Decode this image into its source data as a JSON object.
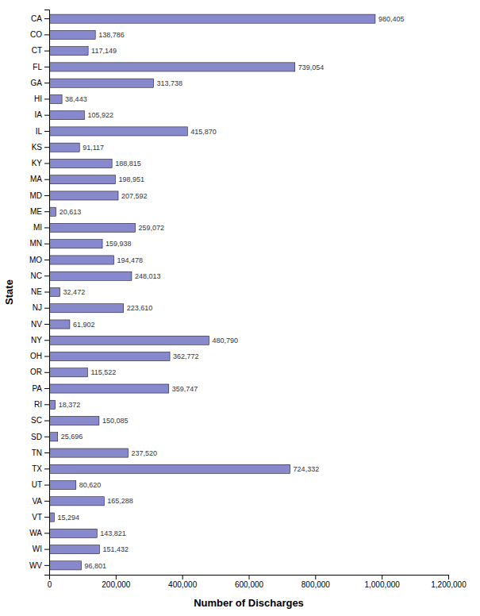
{
  "chart_data": {
    "type": "bar",
    "orientation": "horizontal",
    "categories": [
      "CA",
      "CO",
      "CT",
      "FL",
      "GA",
      "HI",
      "IA",
      "IL",
      "KS",
      "KY",
      "MA",
      "MD",
      "ME",
      "MI",
      "MN",
      "MO",
      "NC",
      "NE",
      "NJ",
      "NV",
      "NY",
      "OH",
      "OR",
      "PA",
      "RI",
      "SC",
      "SD",
      "TN",
      "TX",
      "UT",
      "VA",
      "VT",
      "WA",
      "WI",
      "WV"
    ],
    "values": [
      980405,
      138786,
      117149,
      739054,
      313738,
      38443,
      105922,
      415870,
      91117,
      188815,
      198951,
      207592,
      20613,
      259072,
      159938,
      194478,
      248013,
      32472,
      223610,
      61902,
      480790,
      362772,
      115522,
      359747,
      18372,
      150085,
      25696,
      237520,
      724332,
      80620,
      165288,
      15294,
      143821,
      151432,
      96801
    ],
    "value_labels": [
      "980,405",
      "138,786",
      "117,149",
      "739,054",
      "313,738",
      "38,443",
      "105,922",
      "415,870",
      "91,117",
      "188,815",
      "198,951",
      "207,592",
      "20,613",
      "259,072",
      "159,938",
      "194,478",
      "248,013",
      "32,472",
      "223,610",
      "61,902",
      "480,790",
      "362,772",
      "115,522",
      "359,747",
      "18,372",
      "150,085",
      "25,696",
      "237,520",
      "724,332",
      "80,620",
      "165,288",
      "15,294",
      "143,821",
      "151,432",
      "96,801"
    ],
    "data_labels": true,
    "color": "#8888cc",
    "xlabel": "Number of Discharges",
    "ylabel": "State",
    "xlim": [
      0,
      1200000
    ],
    "xticks": [
      0,
      {
        "value": 200000,
        "label": "200,000"
      },
      {
        "value": 400000,
        "label": "400,000"
      },
      {
        "value": 600000,
        "label": "600,000"
      },
      {
        "value": 800000,
        "label": "800,000"
      },
      {
        "value": 1000000,
        "label": "1,000,000"
      },
      {
        "value": 1200000,
        "label": "1,200,000"
      }
    ],
    "grid": false
  }
}
